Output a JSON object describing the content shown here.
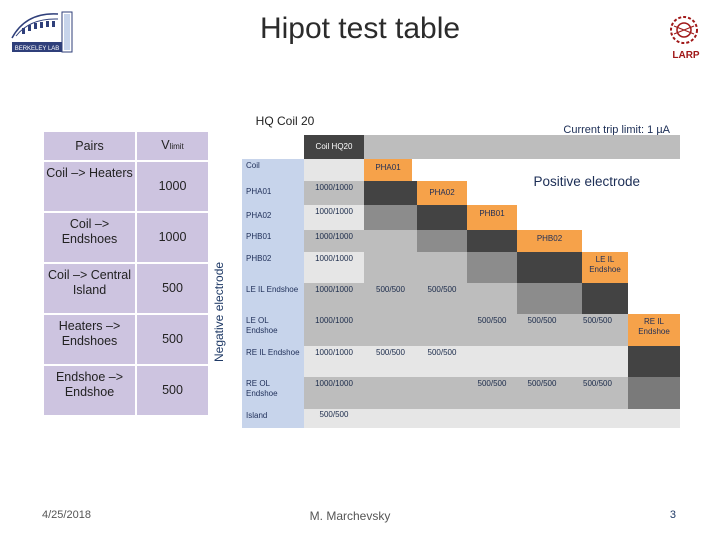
{
  "slide": {
    "title": "Hipot test table",
    "subtitle": "HQ Coil 20",
    "trip_limit": "Current trip limit: 1 µA",
    "positive_label": "Positive electrode",
    "negative_label": "Negative electrode",
    "footer": {
      "date": "4/25/2018",
      "author": "M. Marchevsky",
      "page": "3"
    },
    "logos": {
      "left": "Berkeley Lab",
      "right": "LARP"
    }
  },
  "pairs_table": {
    "header": {
      "pairs": "Pairs",
      "vlimit_main": "V",
      "vlimit_sub": "limit"
    },
    "rows": [
      {
        "pair": "Coil –> Heaters",
        "vlimit": "1000"
      },
      {
        "pair": "Coil –> Endshoes",
        "vlimit": "1000"
      },
      {
        "pair": "Coil –> Central Island",
        "vlimit": "500"
      },
      {
        "pair": "Heaters –> Endshoes",
        "vlimit": "500"
      },
      {
        "pair": "Endshoe –> Endshoe",
        "vlimit": "500"
      }
    ]
  },
  "matrix": {
    "corner": "Coil HQ20",
    "labels": {
      "coil": "Coil",
      "pha01": "PHA01",
      "pha02": "PHA02",
      "phb01": "PHB01",
      "phb02": "PHB02",
      "le_il": "LE IL Endshoe",
      "le_ol": "LE OL Endshoe",
      "re_il": "RE IL Endshoe",
      "re_ol": "RE OL Endshoe",
      "island": "Island"
    },
    "values": {
      "v1000": "1000/1000",
      "v500": "500/500"
    }
  }
}
